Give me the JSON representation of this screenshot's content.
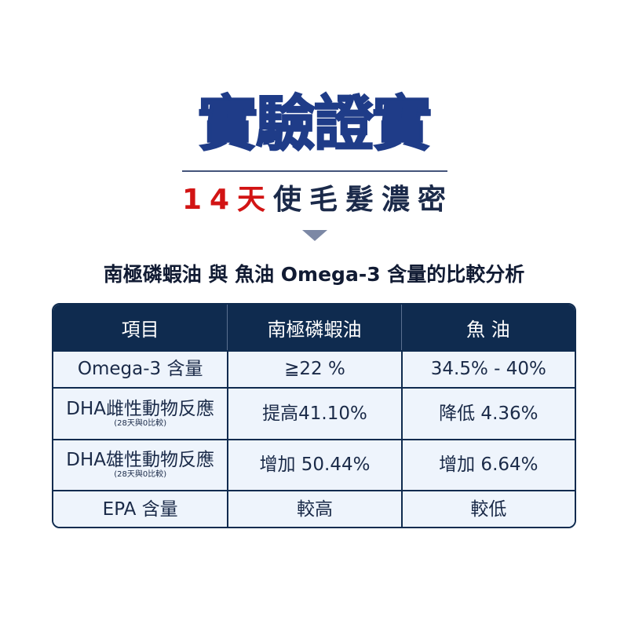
{
  "title": "實驗證實",
  "subtitle": {
    "highlight": "14天",
    "rest": "使毛髮濃密"
  },
  "heading": "南極磷蝦油 與 魚油 Omega-3 含量的比較分析",
  "table": {
    "headers": [
      "項目",
      "南極磷蝦油",
      "魚 油"
    ],
    "rows": [
      {
        "label": "Omega-3 含量",
        "note": "",
        "krill": "≧22 %",
        "fish": "34.5% - 40%"
      },
      {
        "label": "DHA雌性動物反應",
        "note": "(28天與0比較)",
        "krill": "提高41.10%",
        "fish": "降低 4.36%"
      },
      {
        "label": "DHA雄性動物反應",
        "note": "(28天與0比較)",
        "krill": "增加 50.44%",
        "fish": "增加 6.64%"
      },
      {
        "label": "EPA 含量",
        "note": "",
        "krill": "較高",
        "fish": "較低"
      }
    ]
  },
  "colors": {
    "title": "#1f3c88",
    "highlight": "#d21414",
    "table_header": "#0f2b4f",
    "cell_bg": "#eef4fc"
  }
}
